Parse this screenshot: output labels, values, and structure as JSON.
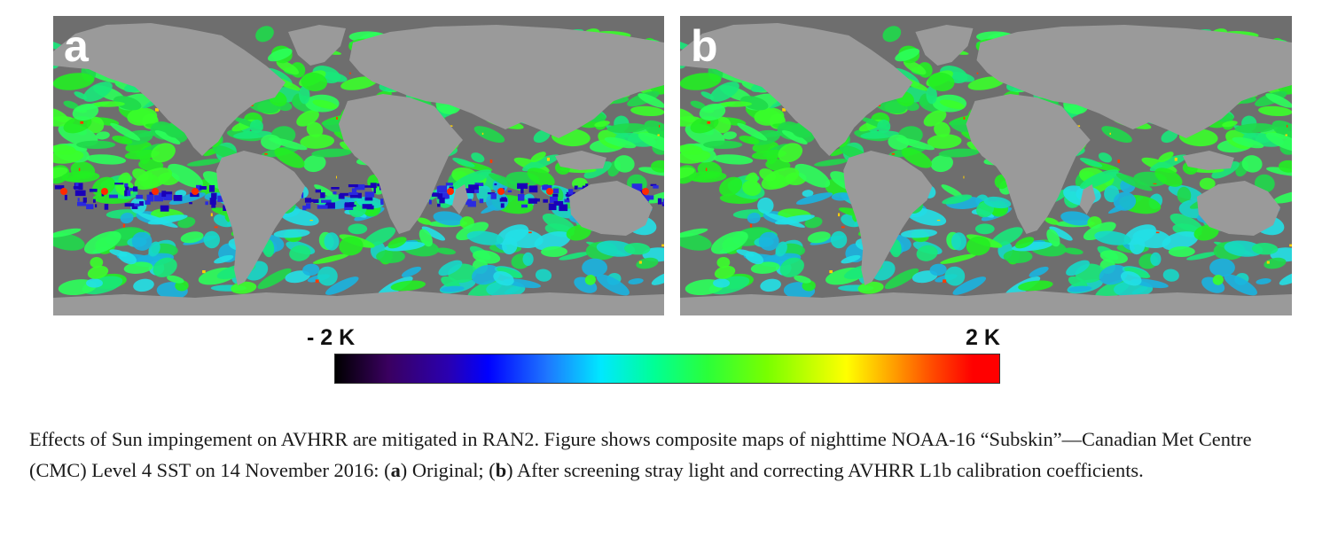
{
  "figure": {
    "panels": [
      {
        "id": "a",
        "label": "a",
        "variant": "original"
      },
      {
        "id": "b",
        "label": "b",
        "variant": "corrected"
      }
    ],
    "colorbar": {
      "min_label": "- 2 K",
      "max_label": "2 K",
      "min_value": -2,
      "max_value": 2,
      "unit": "K",
      "colormap": [
        "#000000",
        "#3a0060",
        "#0000ff",
        "#00e8ff",
        "#00ff96",
        "#78ff00",
        "#ffff00",
        "#ffa000",
        "#ff0000"
      ]
    },
    "colors": {
      "land": "#9a9a9a",
      "no_data": "#6e6e6e"
    }
  },
  "caption": {
    "part1": "Effects of Sun impingement on AVHRR are mitigated in RAN2. Figure shows composite maps of nighttime NOAA-16 “Subskin”—Canadian Met Centre (CMC) Level 4 SST on 14 November 2016: (",
    "a": "a",
    "part2": ") Original; (",
    "b": "b",
    "part3": ") After screening stray light and correcting AVHRR L1b calibration coefficients."
  }
}
